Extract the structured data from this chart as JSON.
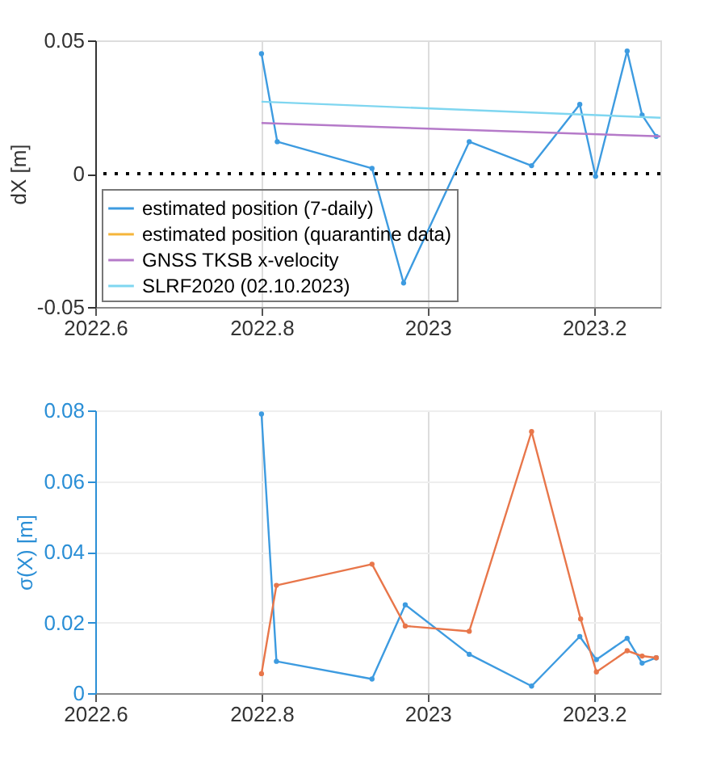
{
  "chart_data": [
    {
      "type": "line",
      "ylabel": "dX [m]",
      "xlim": [
        2022.6,
        2023.28
      ],
      "xticks": [
        2022.6,
        2022.8,
        2023,
        2023.2
      ],
      "ylim": [
        -0.05,
        0.05
      ],
      "yticks": [
        -0.05,
        0,
        0.05
      ],
      "grid": "x",
      "legend": "bottom left",
      "marker": "circle",
      "tick_labels": true,
      "series": [
        {
          "name": "estimated position (7-daily)",
          "color": "#3d9be0",
          "x": [
            2022.8,
            2022.819,
            2022.933,
            2022.971,
            2023.05,
            2023.125,
            2023.183,
            2023.202,
            2023.24,
            2023.258,
            2023.275
          ],
          "values": [
            0.045,
            0.012,
            0.002,
            -0.041,
            0.012,
            0.003,
            0.026,
            -0.001,
            0.046,
            0.022,
            0.014
          ]
        },
        {
          "name": "estimated position (quarantine data)",
          "color": "#f5b53a"
        },
        {
          "name": "GNSS TKSB x-velocity",
          "color": "#b57ac9",
          "marker": "none",
          "x": [
            2022.8,
            2023.28
          ],
          "values": [
            0.019,
            0.014
          ]
        },
        {
          "name": "SLRF2020 (02.10.2023)",
          "color": "#7fd6f0",
          "marker": "none",
          "x": [
            2022.8,
            2023.28
          ],
          "values": [
            0.027,
            0.021
          ]
        }
      ],
      "ref_lines": [
        {
          "axis": "y",
          "value": 0,
          "color": "#000000",
          "line_style": "dotted"
        }
      ]
    },
    {
      "type": "line",
      "ylabel": "σ(X) [m]",
      "xlim": [
        2022.6,
        2023.28
      ],
      "xticks": [
        2022.6,
        2022.8,
        2023,
        2023.2
      ],
      "ylim": [
        0,
        0.08
      ],
      "yticks": [
        0,
        0.02,
        0.04,
        0.06,
        0.08
      ],
      "grid": true,
      "marker": "circle",
      "series": [
        {
          "color": "#3d9be0",
          "x": [
            2022.8,
            2022.818,
            2022.933,
            2022.973,
            2023.05,
            2023.125,
            2023.183,
            2023.203,
            2023.24,
            2023.258,
            2023.275
          ],
          "values": [
            0.079,
            0.009,
            0.004,
            0.025,
            0.011,
            0.002,
            0.016,
            0.0095,
            0.0155,
            0.0085,
            0.01
          ]
        },
        {
          "color": "#e8764a",
          "x": [
            2022.8,
            2022.818,
            2022.933,
            2022.973,
            2023.05,
            2023.125,
            2023.184,
            2023.203,
            2023.24,
            2023.258,
            2023.275
          ],
          "values": [
            0.0055,
            0.0305,
            0.0365,
            0.019,
            0.0175,
            0.074,
            0.021,
            0.006,
            0.012,
            0.0105,
            0.01
          ]
        }
      ]
    }
  ]
}
